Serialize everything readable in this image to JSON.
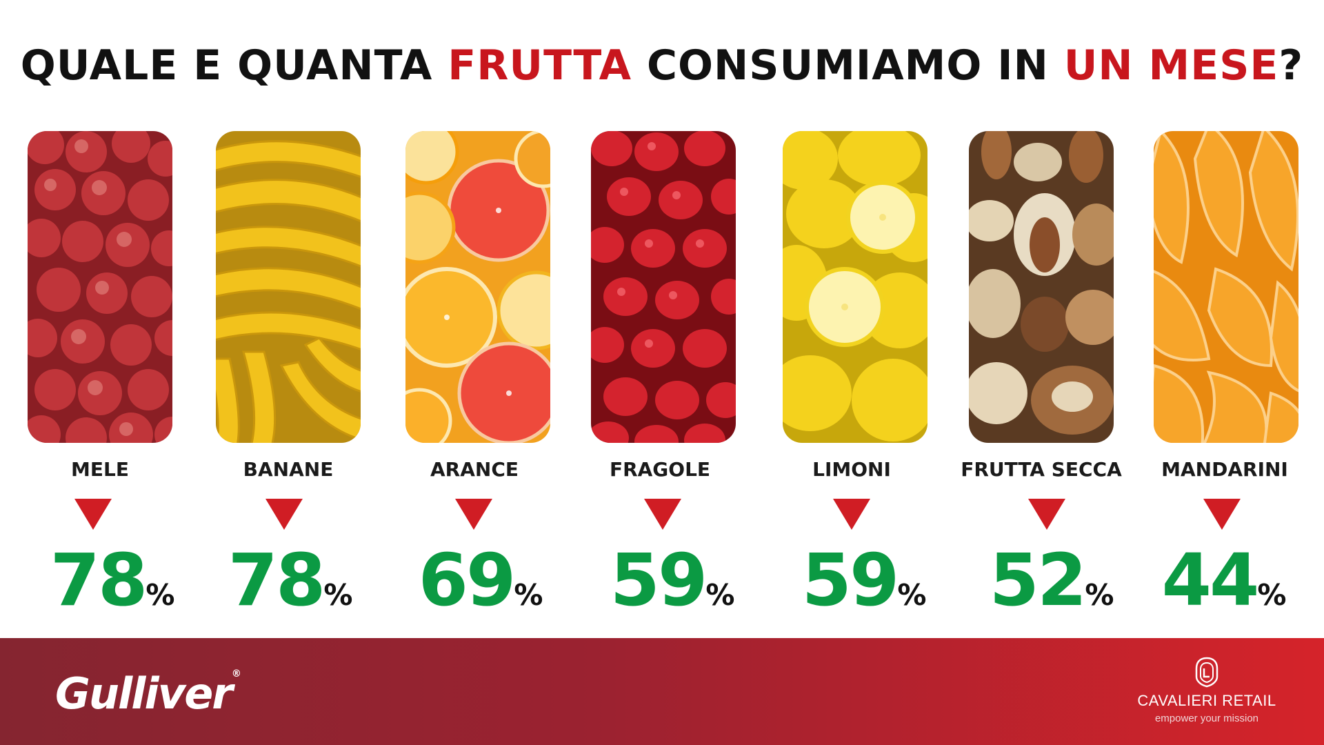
{
  "header": {
    "title_part1": "QUALE E QUANTA ",
    "title_highlight1": "FRUTTA",
    "title_part2": " CONSUMIAMO IN ",
    "title_highlight2": "UN MESE",
    "title_part3": "?"
  },
  "fruits": [
    {
      "label": "MELE",
      "value": "78",
      "unit": "%"
    },
    {
      "label": "BANANE",
      "value": "78",
      "unit": "%"
    },
    {
      "label": "ARANCE",
      "value": "69",
      "unit": "%"
    },
    {
      "label": "FRAGOLE",
      "value": "59",
      "unit": "%"
    },
    {
      "label": "LIMONI",
      "value": "59",
      "unit": "%"
    },
    {
      "label": "FRUTTA SECCA",
      "value": "52",
      "unit": "%"
    },
    {
      "label": "MANDARINI",
      "value": "44",
      "unit": "%"
    }
  ],
  "footer": {
    "brand_left": "Gulliver",
    "brand_right": "CAVALIERI RETAIL",
    "brand_right_tagline": "empower your mission"
  },
  "colors": {
    "highlight": "#c8161d",
    "value_green": "#0b9a43",
    "arrow_red": "#d01d24",
    "footer_dark": "#852530",
    "footer_light": "#d5232a"
  }
}
